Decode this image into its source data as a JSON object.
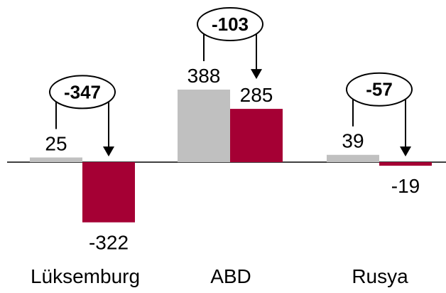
{
  "chart_data": {
    "type": "bar",
    "categories": [
      "Lüksemburg",
      "ABD",
      "Rusya"
    ],
    "series": [
      {
        "values": [
          25,
          388,
          39
        ],
        "color": "#c0c0c0"
      },
      {
        "values": [
          -322,
          285,
          -19
        ],
        "color": "#a50034"
      }
    ],
    "deltas": [
      {
        "category": "Lüksemburg",
        "value": -347,
        "label": "-347"
      },
      {
        "category": "ABD",
        "value": -103,
        "label": "-103"
      },
      {
        "category": "Rusya",
        "value": -57,
        "label": "-57"
      }
    ],
    "data_labels": {
      "series_0": [
        "25",
        "388",
        "39"
      ],
      "series_1": [
        "-322",
        "285",
        "-19"
      ]
    },
    "ylim": [
      -322,
      388
    ],
    "grid": false,
    "legend": "none",
    "title": "",
    "xlabel": "",
    "ylabel": ""
  }
}
